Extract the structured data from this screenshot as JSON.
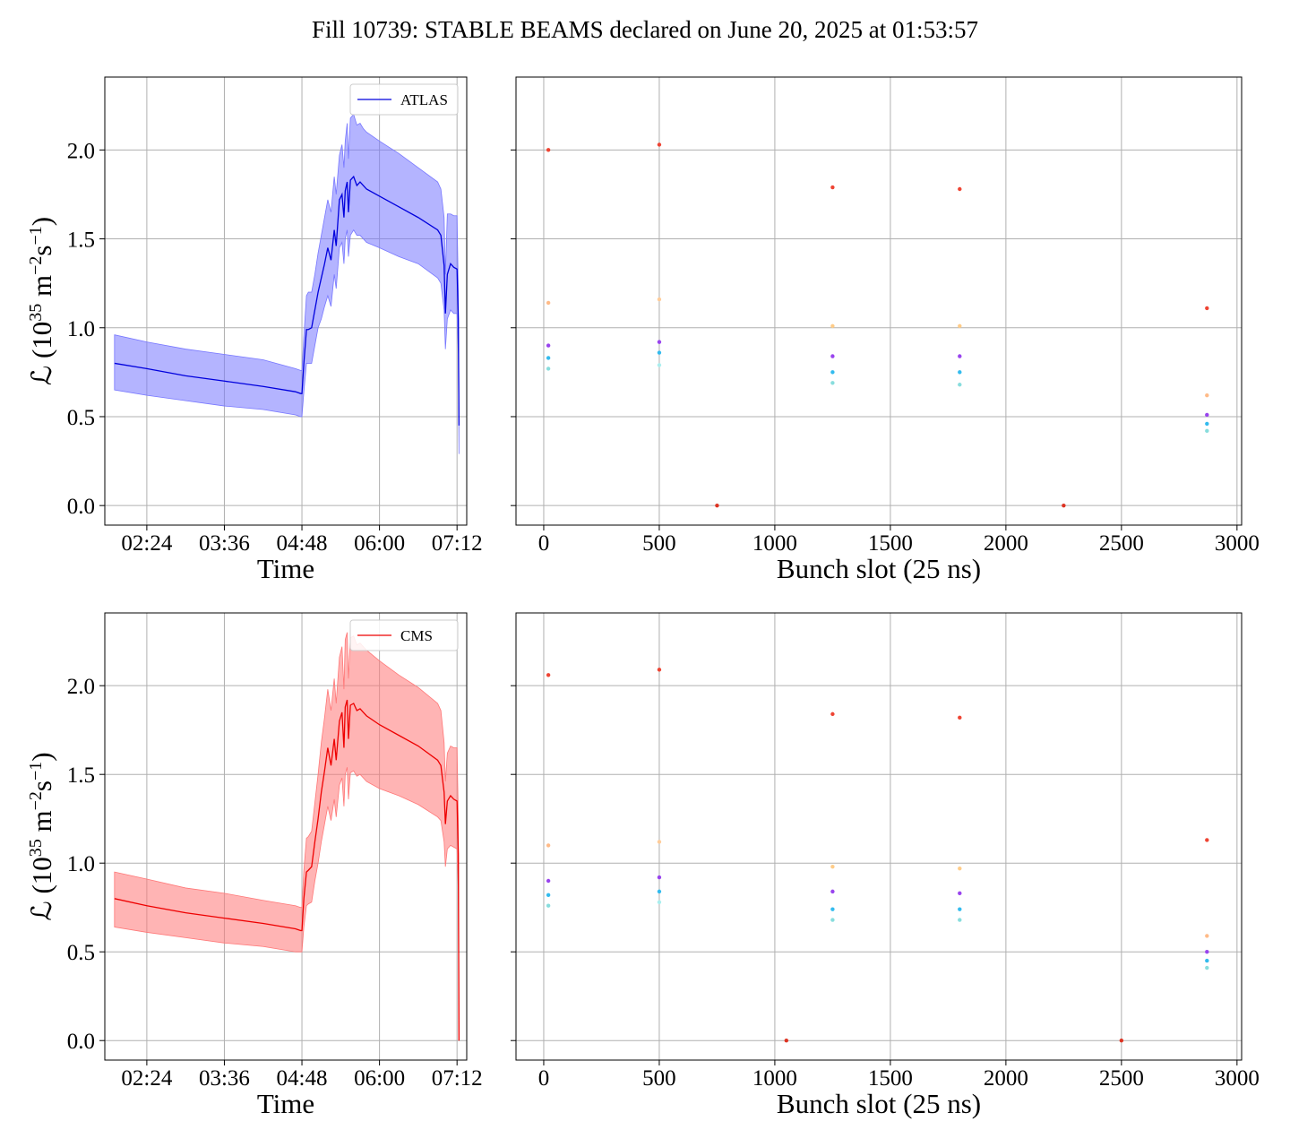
{
  "title": "Fill 10739: STABLE BEAMS declared on June 20, 2025 at 01:53:57",
  "chart_data": [
    {
      "id": "atlas-time",
      "type": "line",
      "experiment": "ATLAS",
      "color": "#0000dd",
      "band_color": "#7777ff",
      "xlabel": "Time",
      "ylabel_parts": [
        "ℒ (10",
        "35",
        " m",
        "−2",
        "s",
        "−1",
        ")"
      ],
      "xlim": [
        1.75,
        7.35
      ],
      "ylim": [
        -0.11,
        2.41
      ],
      "xticks": [
        2.4,
        3.6,
        4.8,
        6.0,
        7.2
      ],
      "xtick_labels": [
        "02:24",
        "03:36",
        "04:48",
        "06:00",
        "07:12"
      ],
      "yticks": [
        0.0,
        0.5,
        1.0,
        1.5,
        2.0
      ],
      "ytick_labels": [
        "0.0",
        "0.5",
        "1.0",
        "1.5",
        "2.0"
      ],
      "legend": "ATLAS",
      "legend_position": "upper right",
      "grid": true,
      "series": [
        {
          "name": "ATLAS",
          "x": [
            1.9,
            2.4,
            3.0,
            3.6,
            4.2,
            4.7,
            4.78,
            4.8,
            4.83,
            4.87,
            4.9,
            4.95,
            5.0,
            5.05,
            5.1,
            5.15,
            5.2,
            5.25,
            5.3,
            5.33,
            5.38,
            5.42,
            5.45,
            5.47,
            5.5,
            5.52,
            5.55,
            5.6,
            5.65,
            5.7,
            5.75,
            5.8,
            6.0,
            6.3,
            6.6,
            6.9,
            6.95,
            7.0,
            7.02,
            7.05,
            7.1,
            7.15,
            7.2,
            7.22,
            7.23
          ],
          "y": [
            0.8,
            0.77,
            0.73,
            0.7,
            0.67,
            0.64,
            0.63,
            0.63,
            0.8,
            0.99,
            0.99,
            1.0,
            1.1,
            1.2,
            1.28,
            1.36,
            1.45,
            1.38,
            1.55,
            1.46,
            1.72,
            1.75,
            1.62,
            1.77,
            1.82,
            1.65,
            1.83,
            1.85,
            1.8,
            1.82,
            1.8,
            1.78,
            1.74,
            1.68,
            1.62,
            1.55,
            1.52,
            1.35,
            1.08,
            1.3,
            1.36,
            1.34,
            1.33,
            1.05,
            0.45
          ],
          "band_upper": [
            0.96,
            0.92,
            0.88,
            0.85,
            0.82,
            0.77,
            0.76,
            0.76,
            0.95,
            1.18,
            1.2,
            1.2,
            1.3,
            1.42,
            1.52,
            1.62,
            1.72,
            1.65,
            1.85,
            1.75,
            1.97,
            2.03,
            1.9,
            2.05,
            2.15,
            1.95,
            2.18,
            2.2,
            2.14,
            2.15,
            2.12,
            2.1,
            2.05,
            1.98,
            1.9,
            1.82,
            1.78,
            1.62,
            1.3,
            1.64,
            1.64,
            1.63,
            1.63,
            1.2,
            0.55
          ],
          "band_lower": [
            0.65,
            0.62,
            0.59,
            0.56,
            0.54,
            0.51,
            0.5,
            0.5,
            0.64,
            0.8,
            0.8,
            0.8,
            0.9,
            1.0,
            1.05,
            1.12,
            1.18,
            1.12,
            1.3,
            1.22,
            1.45,
            1.48,
            1.36,
            1.5,
            1.55,
            1.4,
            1.52,
            1.55,
            1.52,
            1.52,
            1.5,
            1.48,
            1.45,
            1.4,
            1.36,
            1.28,
            1.25,
            1.1,
            0.88,
            1.05,
            1.1,
            1.08,
            1.08,
            0.85,
            0.29
          ]
        }
      ]
    },
    {
      "id": "atlas-bunch",
      "type": "scatter",
      "experiment": "ATLAS",
      "xlabel": "Bunch slot (25 ns)",
      "xlim": [
        -120,
        3020
      ],
      "ylim": [
        -0.11,
        2.41
      ],
      "xticks": [
        0,
        500,
        1000,
        1500,
        2000,
        2500,
        3000
      ],
      "xtick_labels": [
        "0",
        "500",
        "1000",
        "1500",
        "2000",
        "2500",
        "3000"
      ],
      "yticks": [
        0.0,
        0.5,
        1.0,
        1.5,
        2.0
      ],
      "grid": true,
      "points": [
        {
          "x": 20,
          "y": 2.0,
          "color": "#ee4433"
        },
        {
          "x": 20,
          "y": 1.14,
          "color": "#ffbb88"
        },
        {
          "x": 20,
          "y": 0.9,
          "color": "#9944ee"
        },
        {
          "x": 20,
          "y": 0.83,
          "color": "#33bbee"
        },
        {
          "x": 20,
          "y": 0.77,
          "color": "#88dddd"
        },
        {
          "x": 500,
          "y": 2.03,
          "color": "#ee4433"
        },
        {
          "x": 500,
          "y": 1.16,
          "color": "#ffcc99"
        },
        {
          "x": 500,
          "y": 0.92,
          "color": "#9944ee"
        },
        {
          "x": 500,
          "y": 0.86,
          "color": "#33bbee"
        },
        {
          "x": 500,
          "y": 0.79,
          "color": "#aaeeee"
        },
        {
          "x": 750,
          "y": 0.0,
          "color": "#dd3322"
        },
        {
          "x": 1250,
          "y": 1.79,
          "color": "#ee4433"
        },
        {
          "x": 1250,
          "y": 1.01,
          "color": "#ffcc88"
        },
        {
          "x": 1250,
          "y": 0.84,
          "color": "#9944ee"
        },
        {
          "x": 1250,
          "y": 0.75,
          "color": "#33bbee"
        },
        {
          "x": 1250,
          "y": 0.69,
          "color": "#88dddd"
        },
        {
          "x": 1800,
          "y": 1.78,
          "color": "#ee4433"
        },
        {
          "x": 1800,
          "y": 1.01,
          "color": "#ffcc88"
        },
        {
          "x": 1800,
          "y": 0.84,
          "color": "#9944ee"
        },
        {
          "x": 1800,
          "y": 0.75,
          "color": "#33bbee"
        },
        {
          "x": 1800,
          "y": 0.68,
          "color": "#88dddd"
        },
        {
          "x": 2250,
          "y": 0.0,
          "color": "#dd3322"
        },
        {
          "x": 2870,
          "y": 1.11,
          "color": "#ee4433"
        },
        {
          "x": 2870,
          "y": 0.62,
          "color": "#ffbb88"
        },
        {
          "x": 2870,
          "y": 0.51,
          "color": "#9944ee"
        },
        {
          "x": 2870,
          "y": 0.46,
          "color": "#33bbee"
        },
        {
          "x": 2870,
          "y": 0.42,
          "color": "#88dddd"
        }
      ]
    },
    {
      "id": "cms-time",
      "type": "line",
      "experiment": "CMS",
      "color": "#ee0000",
      "band_color": "#ff7777",
      "xlabel": "Time",
      "ylabel_parts": [
        "ℒ (10",
        "35",
        " m",
        "−2",
        "s",
        "−1",
        ")"
      ],
      "xlim": [
        1.75,
        7.35
      ],
      "ylim": [
        -0.11,
        2.41
      ],
      "xticks": [
        2.4,
        3.6,
        4.8,
        6.0,
        7.2
      ],
      "xtick_labels": [
        "02:24",
        "03:36",
        "04:48",
        "06:00",
        "07:12"
      ],
      "yticks": [
        0.0,
        0.5,
        1.0,
        1.5,
        2.0
      ],
      "ytick_labels": [
        "0.0",
        "0.5",
        "1.0",
        "1.5",
        "2.0"
      ],
      "legend": "CMS",
      "legend_position": "upper right",
      "grid": true,
      "series": [
        {
          "name": "CMS",
          "x": [
            1.9,
            2.4,
            3.0,
            3.6,
            4.2,
            4.7,
            4.78,
            4.8,
            4.83,
            4.87,
            4.9,
            4.95,
            5.0,
            5.05,
            5.1,
            5.15,
            5.2,
            5.25,
            5.3,
            5.33,
            5.38,
            5.42,
            5.45,
            5.47,
            5.5,
            5.52,
            5.55,
            5.6,
            5.65,
            5.7,
            5.75,
            5.8,
            6.0,
            6.3,
            6.6,
            6.9,
            6.95,
            7.0,
            7.02,
            7.05,
            7.1,
            7.15,
            7.2,
            7.22,
            7.23
          ],
          "y": [
            0.8,
            0.76,
            0.72,
            0.69,
            0.66,
            0.63,
            0.62,
            0.62,
            0.8,
            0.95,
            0.96,
            0.98,
            1.12,
            1.25,
            1.4,
            1.52,
            1.65,
            1.55,
            1.7,
            1.58,
            1.8,
            1.85,
            1.65,
            1.88,
            1.92,
            1.7,
            1.89,
            1.9,
            1.86,
            1.87,
            1.85,
            1.83,
            1.78,
            1.72,
            1.66,
            1.58,
            1.55,
            1.4,
            1.22,
            1.35,
            1.38,
            1.36,
            1.35,
            1.05,
            0.0
          ],
          "band_upper": [
            0.95,
            0.91,
            0.86,
            0.83,
            0.79,
            0.76,
            0.75,
            0.75,
            0.96,
            1.14,
            1.15,
            1.18,
            1.34,
            1.5,
            1.68,
            1.82,
            1.98,
            1.86,
            2.04,
            1.9,
            2.16,
            2.22,
            1.98,
            2.26,
            2.3,
            2.04,
            2.27,
            2.28,
            2.23,
            2.24,
            2.22,
            2.2,
            2.14,
            2.06,
            1.99,
            1.9,
            1.86,
            1.68,
            1.46,
            1.62,
            1.66,
            1.65,
            1.65,
            1.26,
            0.1
          ],
          "band_lower": [
            0.64,
            0.61,
            0.58,
            0.55,
            0.53,
            0.5,
            0.5,
            0.5,
            0.64,
            0.76,
            0.77,
            0.78,
            0.9,
            1.0,
            1.12,
            1.22,
            1.32,
            1.24,
            1.36,
            1.26,
            1.44,
            1.48,
            1.32,
            1.5,
            1.54,
            1.36,
            1.51,
            1.52,
            1.49,
            1.5,
            1.48,
            1.46,
            1.42,
            1.38,
            1.33,
            1.26,
            1.24,
            1.12,
            0.98,
            1.08,
            1.1,
            1.09,
            1.08,
            0.84,
            0.0
          ]
        }
      ]
    },
    {
      "id": "cms-bunch",
      "type": "scatter",
      "experiment": "CMS",
      "xlabel": "Bunch slot (25 ns)",
      "xlim": [
        -120,
        3020
      ],
      "ylim": [
        -0.11,
        2.41
      ],
      "xticks": [
        0,
        500,
        1000,
        1500,
        2000,
        2500,
        3000
      ],
      "xtick_labels": [
        "0",
        "500",
        "1000",
        "1500",
        "2000",
        "2500",
        "3000"
      ],
      "yticks": [
        0.0,
        0.5,
        1.0,
        1.5,
        2.0
      ],
      "grid": true,
      "points": [
        {
          "x": 20,
          "y": 2.06,
          "color": "#ee4433"
        },
        {
          "x": 20,
          "y": 1.1,
          "color": "#ffbb88"
        },
        {
          "x": 20,
          "y": 0.9,
          "color": "#9944ee"
        },
        {
          "x": 20,
          "y": 0.82,
          "color": "#33bbee"
        },
        {
          "x": 20,
          "y": 0.76,
          "color": "#88dddd"
        },
        {
          "x": 500,
          "y": 2.09,
          "color": "#ee4433"
        },
        {
          "x": 500,
          "y": 1.12,
          "color": "#ffcc99"
        },
        {
          "x": 500,
          "y": 0.92,
          "color": "#9944ee"
        },
        {
          "x": 500,
          "y": 0.84,
          "color": "#33bbee"
        },
        {
          "x": 500,
          "y": 0.78,
          "color": "#aaeeee"
        },
        {
          "x": 1050,
          "y": 0.0,
          "color": "#dd3322"
        },
        {
          "x": 1250,
          "y": 1.84,
          "color": "#ee4433"
        },
        {
          "x": 1250,
          "y": 0.98,
          "color": "#ffcc88"
        },
        {
          "x": 1250,
          "y": 0.84,
          "color": "#9944ee"
        },
        {
          "x": 1250,
          "y": 0.74,
          "color": "#33bbee"
        },
        {
          "x": 1250,
          "y": 0.68,
          "color": "#88dddd"
        },
        {
          "x": 1800,
          "y": 1.82,
          "color": "#ee4433"
        },
        {
          "x": 1800,
          "y": 0.97,
          "color": "#ffcc88"
        },
        {
          "x": 1800,
          "y": 0.83,
          "color": "#9944ee"
        },
        {
          "x": 1800,
          "y": 0.74,
          "color": "#33bbee"
        },
        {
          "x": 1800,
          "y": 0.68,
          "color": "#88dddd"
        },
        {
          "x": 2500,
          "y": 0.0,
          "color": "#dd3322"
        },
        {
          "x": 2870,
          "y": 1.13,
          "color": "#ee4433"
        },
        {
          "x": 2870,
          "y": 0.59,
          "color": "#ffbb88"
        },
        {
          "x": 2870,
          "y": 0.5,
          "color": "#9944ee"
        },
        {
          "x": 2870,
          "y": 0.45,
          "color": "#33bbee"
        },
        {
          "x": 2870,
          "y": 0.41,
          "color": "#88dddd"
        }
      ]
    }
  ]
}
